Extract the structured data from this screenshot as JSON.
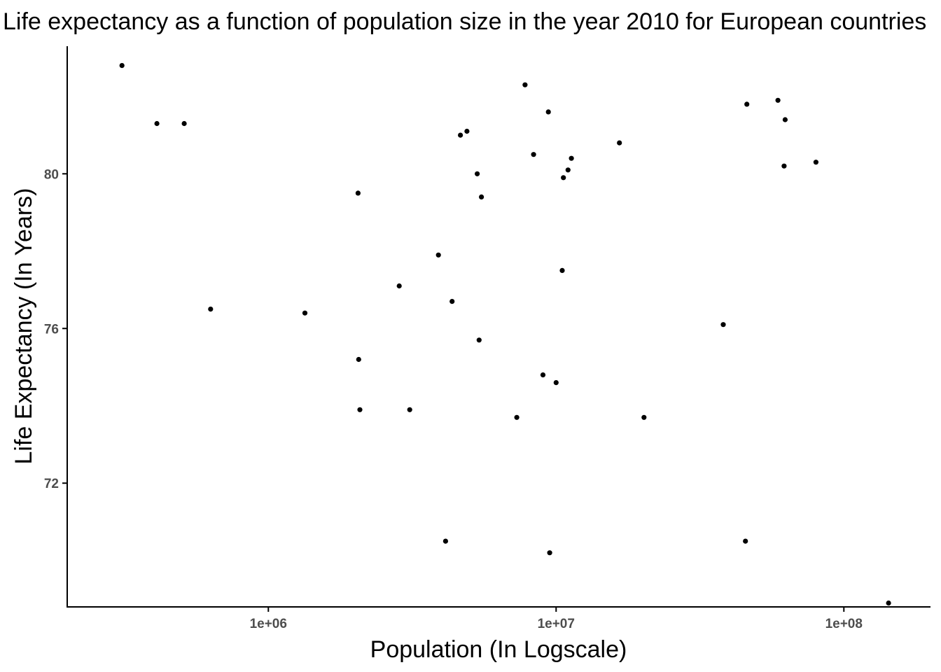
{
  "chart_data": {
    "type": "scatter",
    "title": "Life expectancy as a function of population size in the year 2010 for European countries",
    "xlabel": "Population (In Logscale)",
    "ylabel": "Life Expectancy (In Years)",
    "x_scale": "log10",
    "xlim": [
      200000,
      200000000
    ],
    "ylim": [
      68.8,
      83.3
    ],
    "x_ticks": [
      1000000,
      10000000,
      100000000
    ],
    "x_tick_labels": [
      "1e+06",
      "1e+07",
      "1e+08"
    ],
    "y_ticks": [
      72,
      76,
      80
    ],
    "y_tick_labels": [
      "72",
      "76",
      "80"
    ],
    "grid": false,
    "legend": "none",
    "point_color": "#000000",
    "points": [
      {
        "x": 310000,
        "y": 82.8
      },
      {
        "x": 410000,
        "y": 81.3
      },
      {
        "x": 510000,
        "y": 81.3
      },
      {
        "x": 630000,
        "y": 76.5
      },
      {
        "x": 1340000,
        "y": 76.4
      },
      {
        "x": 2050000,
        "y": 79.5
      },
      {
        "x": 2060000,
        "y": 75.2
      },
      {
        "x": 2080000,
        "y": 73.9
      },
      {
        "x": 2850000,
        "y": 77.1
      },
      {
        "x": 3100000,
        "y": 73.9
      },
      {
        "x": 3900000,
        "y": 77.9
      },
      {
        "x": 4130000,
        "y": 70.5
      },
      {
        "x": 4350000,
        "y": 76.7
      },
      {
        "x": 4650000,
        "y": 81.0
      },
      {
        "x": 4900000,
        "y": 81.1
      },
      {
        "x": 5320000,
        "y": 80.0
      },
      {
        "x": 5400000,
        "y": 75.7
      },
      {
        "x": 5500000,
        "y": 79.4
      },
      {
        "x": 7300000,
        "y": 73.7
      },
      {
        "x": 7800000,
        "y": 82.3
      },
      {
        "x": 8350000,
        "y": 80.5
      },
      {
        "x": 9000000,
        "y": 74.8
      },
      {
        "x": 9400000,
        "y": 81.6
      },
      {
        "x": 9500000,
        "y": 70.2
      },
      {
        "x": 10000000,
        "y": 74.6
      },
      {
        "x": 10500000,
        "y": 77.5
      },
      {
        "x": 10600000,
        "y": 79.9
      },
      {
        "x": 11000000,
        "y": 80.1
      },
      {
        "x": 11300000,
        "y": 80.4
      },
      {
        "x": 16600000,
        "y": 80.8
      },
      {
        "x": 20200000,
        "y": 73.7
      },
      {
        "x": 38100000,
        "y": 76.1
      },
      {
        "x": 45500000,
        "y": 70.5
      },
      {
        "x": 46000000,
        "y": 81.8
      },
      {
        "x": 59000000,
        "y": 81.9
      },
      {
        "x": 62000000,
        "y": 80.2
      },
      {
        "x": 62500000,
        "y": 81.4
      },
      {
        "x": 80000000,
        "y": 80.3
      },
      {
        "x": 143000000,
        "y": 68.9
      }
    ]
  }
}
